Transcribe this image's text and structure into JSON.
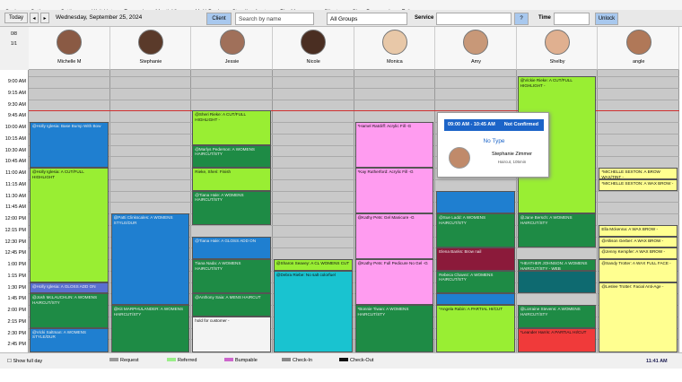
{
  "menu": [
    "Scale",
    "Options",
    "Settings",
    "Wait List",
    "Forward",
    "Month View",
    "Multi-Book",
    "Standing Appts",
    "Pkg Manager",
    "Clients",
    "Clear Password",
    "Exit"
  ],
  "toolbar": {
    "today": "Today",
    "date": "Wednesday, September 25, 2024",
    "client": "Client",
    "search": "Search by name",
    "groups": "All Groups",
    "service": "Service",
    "help": "?",
    "time": "Time",
    "unlock": "Unlock",
    "count_a": "0/8",
    "count_b": "1/1"
  },
  "staff": [
    "Michelle M",
    "Stephanie",
    "Jessie",
    "Nicole",
    "Monica",
    "Amy",
    "Shelby",
    "angle"
  ],
  "times": [
    "9:00 AM",
    "9:15 AM",
    "9:30 AM",
    "9:45 AM",
    "10:00 AM",
    "10:15 AM",
    "10:30 AM",
    "10:45 AM",
    "11:00 AM",
    "11:15 AM",
    "11:30 AM",
    "11:45 AM",
    "12:00 PM",
    "12:15 PM",
    "12:30 PM",
    "12:45 PM",
    "1:00 PM",
    "1:15 PM",
    "1:30 PM",
    "1:45 PM",
    "2:00 PM",
    "2:15 PM",
    "2:30 PM",
    "2:45 PM"
  ],
  "appointments": [
    {
      "staff": "Michelle M",
      "start": "10:00 AM",
      "end": "11:00 AM",
      "color": "#1f7fd0",
      "text": "@Holly Iglesia: Base Bump With Bow"
    },
    {
      "staff": "Michelle M",
      "start": "11:00 AM",
      "end": "1:30 PM",
      "color": "#99ee33",
      "text": "@Holly Iglesia: A CUT/FULL HIGHLIGHT"
    },
    {
      "staff": "Michelle M",
      "start": "1:30 PM",
      "end": "1:45 PM",
      "color": "#5a6fd0",
      "text": "@Holly Iglesia: A GLOSS ADD ON"
    },
    {
      "staff": "Michelle M",
      "start": "1:45 PM",
      "end": "2:30 PM",
      "color": "#1e8b45",
      "text": "@Josh McLAUCHLIN: A WOMENS HAIRCUT/STY"
    },
    {
      "staff": "Michelle M",
      "start": "2:30 PM",
      "color": "#1f7fd0",
      "text": "@Vicki Saltman: A WOMENS STYLE/DUR"
    },
    {
      "staff": "Stephanie",
      "start": "12:00 PM",
      "end": "2:00 PM",
      "color": "#1f7fd0",
      "text": "@Patti Clinkscales: A WOMENS STYLE/DUR"
    },
    {
      "staff": "Stephanie",
      "start": "2:00 PM",
      "color": "#1e8b45",
      "text": "@Kit MARPHULANDER: A WOMENS HAIRCUT/STY"
    },
    {
      "staff": "Jessie",
      "start": "9:45 AM",
      "end": "10:30 AM",
      "color": "#99ee33",
      "text": "@Sheri Rieke: A CUT/FULL HIGHLIGHT -"
    },
    {
      "staff": "Jessie",
      "start": "10:30 AM",
      "end": "11:00 AM",
      "color": "#1e8b45",
      "text": "@Marlys Pederson: A WOMENS HAIRCUT/STY"
    },
    {
      "staff": "Jessie",
      "start": "11:00 AM",
      "end": "11:30 AM",
      "color": "#99ee33",
      "text": "Rieke, Sheri: Finish"
    },
    {
      "staff": "Jessie",
      "start": "11:30 AM",
      "end": "12:15 PM",
      "color": "#1e8b45",
      "text": "@Tiana Hale: A WOMENS HAIRCUT/STY"
    },
    {
      "staff": "Jessie",
      "start": "12:30 PM",
      "end": "1:00 PM",
      "color": "#1f7fd0",
      "text": "@Tiana Hale: A GLOSS ADD ON"
    },
    {
      "staff": "Jessie",
      "start": "1:00 PM",
      "end": "1:45 PM",
      "color": "#1e8b45",
      "text": "Tiana Nada: A WOMENS HAIRCUT/STY"
    },
    {
      "staff": "Jessie",
      "start": "1:45 PM",
      "end": "2:15 PM",
      "color": "#1e8b45",
      "text": "@Anthony Saia: A MENS HAIRCUT"
    },
    {
      "staff": "Jessie",
      "start": "2:15 PM",
      "color": "#f4f4f4",
      "text": "hold for customer -"
    },
    {
      "staff": "Nicole",
      "start": "1:00 PM",
      "end": "1:15 PM",
      "color": "#99ee33",
      "text": "@Sharon Seavey: A CL WOMENS CUT"
    },
    {
      "staff": "Nicole",
      "start": "1:15 PM",
      "color": "#19c3d0",
      "text": "@Debra Riebe: No salt colorfuel"
    },
    {
      "staff": "Monica",
      "start": "10:00 AM",
      "end": "11:00 AM",
      "color": "#ff9cf0",
      "text": "*Hamel Ratcliff: Acrylic Fill -G"
    },
    {
      "staff": "Monica",
      "start": "11:00 AM",
      "end": "12:00 PM",
      "color": "#ff9cf0",
      "text": "*Kay Rutherford: Acrylic Fill -G"
    },
    {
      "staff": "Monica",
      "start": "12:00 PM",
      "end": "1:00 PM",
      "color": "#ff9cf0",
      "text": "@Kathy Pets: Gel Manicure -G"
    },
    {
      "staff": "Monica",
      "start": "1:00 PM",
      "end": "2:00 PM",
      "color": "#ff9cf0",
      "text": "@Kathy Pets: Full Pedicure No Gel -G"
    },
    {
      "staff": "Monica",
      "start": "2:00 PM",
      "color": "#1e8b45",
      "text": "*Bonnie Tiwan: A WOMENS HAIRCUT/STY"
    },
    {
      "staff": "Amy",
      "start": "11:30 AM",
      "end": "12:00 PM",
      "color": "#1f7fd0",
      "text": ""
    },
    {
      "staff": "Amy",
      "start": "12:00 PM",
      "end": "12:45 PM",
      "color": "#1e8b45",
      "text": "@Sue Ladd: A WOMENS HAIRCUT/STY"
    },
    {
      "staff": "Amy",
      "start": "12:45 PM",
      "end": "1:15 PM",
      "color": "#8b1a3a",
      "text": "Elena Banks: Brow nail"
    },
    {
      "staff": "Amy",
      "start": "1:15 PM",
      "end": "1:45 PM",
      "color": "#1e8b45",
      "text": "Rebeca Chavez: A WOMENS HAIRCUT/STY"
    },
    {
      "staff": "Amy",
      "start": "1:45 PM",
      "end": "2:00 PM",
      "color": "#1f7fd0",
      "text": ""
    },
    {
      "staff": "Amy",
      "start": "2:00 PM",
      "color": "#99ee33",
      "text": "*Angela Rabin: A PARTIAL HI/CUT"
    },
    {
      "staff": "Shelby",
      "start": "9:00 AM",
      "end": "12:00 PM",
      "color": "#99ee33",
      "text": "@Vickie Rieke: A CUT/FULL HIGHLIGHT -"
    },
    {
      "staff": "Shelby",
      "start": "12:00 PM",
      "end": "12:45 PM",
      "color": "#1e8b45",
      "text": "@Jane Bersch: A WOMENS HAIRCUT/STY"
    },
    {
      "staff": "Shelby",
      "start": "1:00 PM",
      "end": "1:15 PM",
      "color": "#1e8b45",
      "text": "*HEATHER JOHNSON: A WOMENS HAIRCUT/STY - WEB"
    },
    {
      "staff": "Shelby",
      "start": "1:15 PM",
      "end": "1:45 PM",
      "color": "#0e6a70",
      "text": ""
    },
    {
      "staff": "Shelby",
      "start": "2:00 PM",
      "end": "2:30 PM",
      "color": "#1e8b45",
      "text": "@Lorraine Stevens: A WOMENS HAIRCUT/STY"
    },
    {
      "staff": "Shelby",
      "start": "2:30 PM",
      "color": "#f03a3a",
      "text": "*Leander Harris: A PARTIAL HI/CUT"
    },
    {
      "staff": "angle",
      "start": "11:00 AM",
      "end": "11:15 AM",
      "color": "#ffff90",
      "text": "*MICHELLE SEXTON: A BROW WAX/TINT -"
    },
    {
      "staff": "angle",
      "start": "11:15 AM",
      "end": "11:30 AM",
      "color": "#ffff90",
      "text": "*MICHELLE SEXTON: A WAX BROW -"
    },
    {
      "staff": "angle",
      "start": "12:15 PM",
      "end": "12:30 PM",
      "color": "#ffff90",
      "text": "Ella Mckenna: A WAX BROW -"
    },
    {
      "staff": "angle",
      "start": "12:30 PM",
      "end": "12:45 PM",
      "color": "#ffff90",
      "text": "@Allison Gerber: A WAX BROW -"
    },
    {
      "staff": "angle",
      "start": "12:45 PM",
      "end": "1:00 PM",
      "color": "#ffff90",
      "text": "@Jenny Kempfer: A WAX BROW -"
    },
    {
      "staff": "angle",
      "start": "1:00 PM",
      "end": "1:30 PM",
      "color": "#ffff90",
      "text": "@Sandy Trotter: A WAX FULL FACE -"
    },
    {
      "staff": "angle",
      "start": "1:30 PM",
      "color": "#ffff90",
      "text": "@Leslee Trotter: Facial Anti-Age -"
    }
  ],
  "popup": {
    "range": "09:00 AM - 10:45 AM",
    "status": "Not Confirmed",
    "type": "No Type",
    "client": "Stephanie Zimmer",
    "service": "Haircut, 105min"
  },
  "footer": {
    "show_full_day": "Show full day",
    "legend": [
      {
        "label": "Request",
        "color": "#999999"
      },
      {
        "label": "Referred",
        "color": "#99ee88"
      },
      {
        "label": "Bumpable",
        "color": "#cc66cc"
      },
      {
        "label": "Check-In",
        "color": "#888888"
      },
      {
        "label": "Check-Out",
        "color": "#111111"
      }
    ],
    "clock": "11:41 AM"
  }
}
